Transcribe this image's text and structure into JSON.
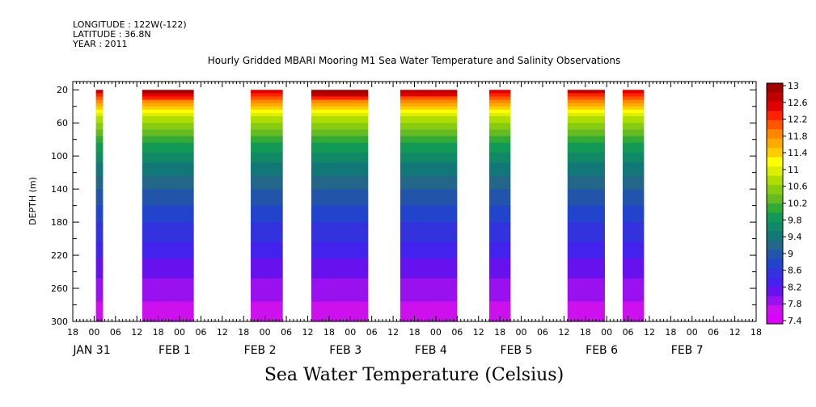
{
  "header": {
    "longitude": "LONGITUDE : 122W(-122)",
    "latitude": "LATITUDE : 36.8N",
    "year": "YEAR : 2011"
  },
  "chart_data": {
    "type": "heatmap",
    "title": "Hourly Gridded MBARI Mooring M1 Sea Water Temperature and Salinity Observations",
    "xlabel": "Sea Water Temperature (Celsius)",
    "ylabel": "DEPTH (m)",
    "x_unit": "hours since JAN 31 00:00",
    "xlim": [
      -6,
      174
    ],
    "ylim": [
      300,
      10
    ],
    "y_ticks": [
      20,
      60,
      100,
      140,
      180,
      220,
      260,
      300
    ],
    "x_hour_ticks": [
      {
        "h": -6,
        "label": "18"
      },
      {
        "h": 0,
        "label": "00"
      },
      {
        "h": 6,
        "label": "06"
      },
      {
        "h": 12,
        "label": "12"
      },
      {
        "h": 18,
        "label": "18"
      },
      {
        "h": 24,
        "label": "00"
      },
      {
        "h": 30,
        "label": "06"
      },
      {
        "h": 36,
        "label": "12"
      },
      {
        "h": 42,
        "label": "18"
      },
      {
        "h": 48,
        "label": "00"
      },
      {
        "h": 54,
        "label": "06"
      },
      {
        "h": 60,
        "label": "12"
      },
      {
        "h": 66,
        "label": "18"
      },
      {
        "h": 72,
        "label": "00"
      },
      {
        "h": 78,
        "label": "06"
      },
      {
        "h": 84,
        "label": "12"
      },
      {
        "h": 90,
        "label": "18"
      },
      {
        "h": 96,
        "label": "00"
      },
      {
        "h": 102,
        "label": "06"
      },
      {
        "h": 108,
        "label": "12"
      },
      {
        "h": 114,
        "label": "18"
      },
      {
        "h": 120,
        "label": "00"
      },
      {
        "h": 126,
        "label": "06"
      },
      {
        "h": 132,
        "label": "12"
      },
      {
        "h": 138,
        "label": "18"
      },
      {
        "h": 144,
        "label": "00"
      },
      {
        "h": 150,
        "label": "06"
      },
      {
        "h": 156,
        "label": "12"
      },
      {
        "h": 162,
        "label": "18"
      },
      {
        "h": 168,
        "label": "00"
      },
      {
        "h": 174,
        "label": "06"
      },
      {
        "h": 180,
        "label": "12"
      },
      {
        "h": 186,
        "label": "18"
      }
    ],
    "date_labels": [
      {
        "h": 0,
        "label": "JAN 31"
      },
      {
        "h": 24,
        "label": "FEB  1"
      },
      {
        "h": 48,
        "label": "FEB  2"
      },
      {
        "h": 72,
        "label": "FEB  3"
      },
      {
        "h": 96,
        "label": "FEB  4"
      },
      {
        "h": 120,
        "label": "FEB  5"
      },
      {
        "h": 144,
        "label": "FEB  6"
      },
      {
        "h": 168,
        "label": "FEB  7"
      }
    ],
    "data_segments": [
      {
        "start": 0.5,
        "end": 2.5,
        "surface_temp": 12.6
      },
      {
        "start": 13.5,
        "end": 28,
        "surface_temp": 12.8
      },
      {
        "start": 44,
        "end": 53,
        "surface_temp": 12.4
      },
      {
        "start": 61,
        "end": 77,
        "surface_temp": 12.9
      },
      {
        "start": 86,
        "end": 102,
        "surface_temp": 12.7
      },
      {
        "start": 111,
        "end": 117,
        "surface_temp": 12.4
      },
      {
        "start": 133,
        "end": 143.5,
        "surface_temp": 12.6
      },
      {
        "start": 148.5,
        "end": 154.5,
        "surface_temp": 12.4
      }
    ],
    "temperature_profile": {
      "depths": [
        20,
        40,
        60,
        80,
        100,
        120,
        140,
        160,
        180,
        200,
        220,
        240,
        260,
        280,
        300
      ],
      "temps": [
        12.6,
        11.4,
        10.6,
        10.1,
        9.7,
        9.4,
        9.1,
        8.9,
        8.7,
        8.5,
        8.3,
        8.1,
        7.95,
        7.8,
        7.6
      ]
    },
    "colorbar": {
      "levels": [
        "13",
        "12.6",
        "12.2",
        "11.8",
        "11.4",
        "11",
        "10.6",
        "10.2",
        "9.8",
        "9.4",
        "9",
        "8.6",
        "8.2",
        "7.8",
        "7.4"
      ],
      "colors": [
        "#a00000",
        "#c00000",
        "#e00000",
        "#ff2200",
        "#ff5500",
        "#ff8800",
        "#ffaa00",
        "#ffcc00",
        "#ffff00",
        "#ddee00",
        "#b0dd00",
        "#88cc11",
        "#66bb22",
        "#33aa33",
        "#119955",
        "#118866",
        "#117777",
        "#226688",
        "#2255aa",
        "#2244cc",
        "#3333dd",
        "#4422ee",
        "#6611ee",
        "#9911ee",
        "#cc11ee",
        "#dd00ff"
      ]
    }
  }
}
